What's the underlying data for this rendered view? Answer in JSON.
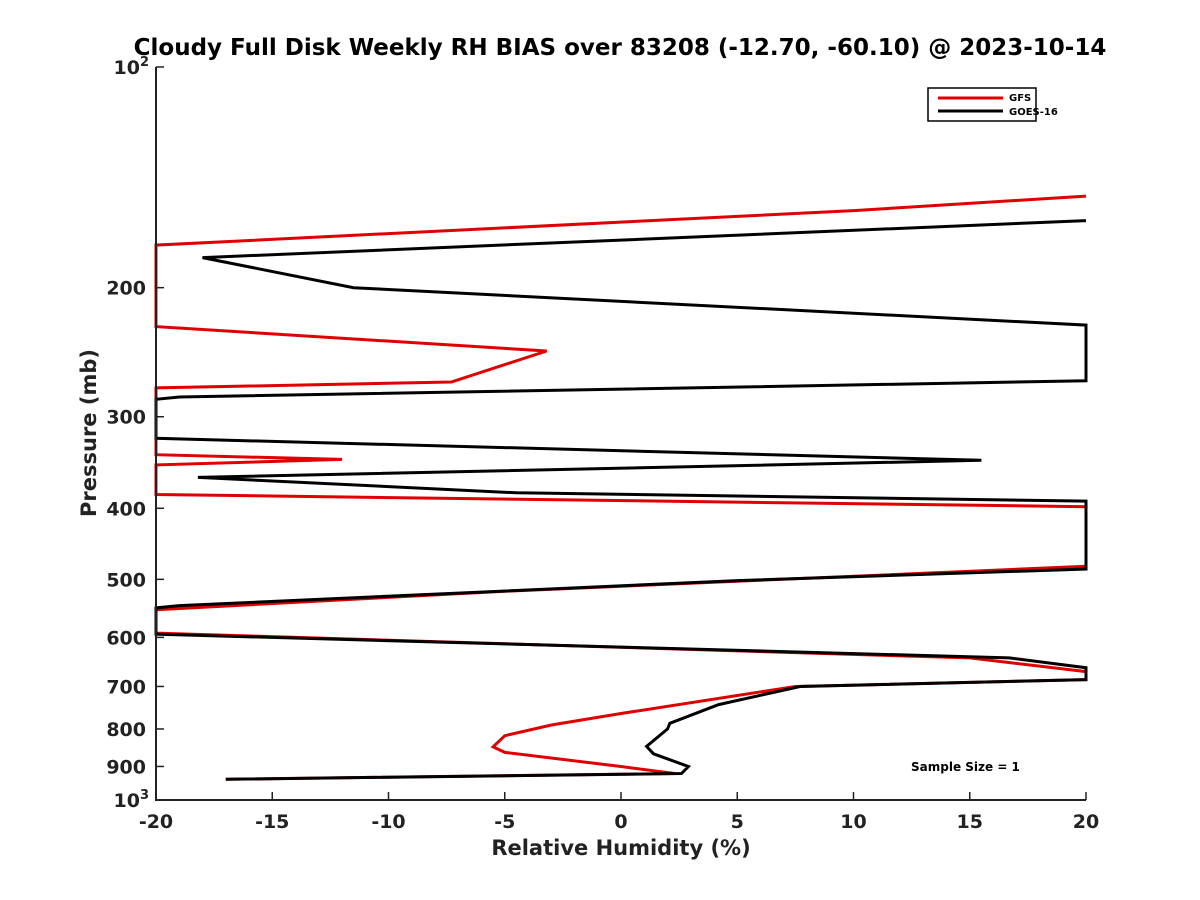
{
  "chart_data": {
    "type": "line",
    "title": "Cloudy Full Disk Weekly RH BIAS over 83208 (-12.70, -60.10) @ 2023-10-14",
    "xlabel": "Relative Humidity (%)",
    "ylabel": "Pressure (mb)",
    "xlim": [
      -20,
      20
    ],
    "ylim": [
      100,
      1000
    ],
    "yscale": "log",
    "x_ticks": [
      -20,
      -15,
      -10,
      -5,
      0,
      5,
      10,
      15,
      20
    ],
    "y_ticks": [
      {
        "value": 100,
        "base": "10",
        "exp": "2"
      },
      {
        "value": 200,
        "label": "200"
      },
      {
        "value": 300,
        "label": "300"
      },
      {
        "value": 400,
        "label": "400"
      },
      {
        "value": 500,
        "label": "500"
      },
      {
        "value": 600,
        "label": "600"
      },
      {
        "value": 700,
        "label": "700"
      },
      {
        "value": 800,
        "label": "800"
      },
      {
        "value": 900,
        "label": "900"
      },
      {
        "value": 1000,
        "base": "10",
        "exp": "3"
      }
    ],
    "legend_position": "top-right",
    "series": [
      {
        "name": "GFS",
        "color": "#e00000",
        "points": [
          [
            20,
            150
          ],
          [
            10,
            157
          ],
          [
            -20,
            175
          ],
          [
            -20,
            226
          ],
          [
            -3.2,
            244
          ],
          [
            -7.3,
            269
          ],
          [
            -20,
            274
          ],
          [
            -20,
            338
          ],
          [
            -12,
            343
          ],
          [
            -20,
            349
          ],
          [
            -20,
            383
          ],
          [
            20,
            398
          ],
          [
            20,
            480
          ],
          [
            -5,
            519
          ],
          [
            -20,
            550
          ],
          [
            -20,
            592
          ],
          [
            15,
            640
          ],
          [
            20,
            668
          ],
          [
            20,
            685
          ],
          [
            7.5,
            700
          ],
          [
            0,
            762
          ],
          [
            -3,
            790
          ],
          [
            -5,
            817
          ],
          [
            -5.5,
            846
          ],
          [
            -5,
            861
          ],
          [
            0,
            900
          ],
          [
            2.3,
            920
          ],
          [
            -17,
            937
          ]
        ]
      },
      {
        "name": "GOES-16",
        "color": "#000000",
        "points": [
          [
            20,
            162
          ],
          [
            -18,
            182
          ],
          [
            -11.5,
            200
          ],
          [
            20,
            225
          ],
          [
            20,
            268
          ],
          [
            -19,
            282
          ],
          [
            -20,
            284
          ],
          [
            -20,
            321
          ],
          [
            15.5,
            344
          ],
          [
            -18.2,
            363
          ],
          [
            -4.5,
            381
          ],
          [
            20,
            391
          ],
          [
            20,
            484
          ],
          [
            5,
            502
          ],
          [
            -19,
            543
          ],
          [
            -20,
            547
          ],
          [
            -20,
            594
          ],
          [
            16.7,
            640
          ],
          [
            20,
            660
          ],
          [
            20,
            685
          ],
          [
            7.7,
            700
          ],
          [
            4.2,
            741
          ],
          [
            2.1,
            786
          ],
          [
            2,
            800
          ],
          [
            1.1,
            845
          ],
          [
            1.4,
            865
          ],
          [
            2.9,
            900
          ],
          [
            2.6,
            920
          ],
          [
            -17,
            937
          ]
        ]
      }
    ],
    "annotation": "Sample Size = 1"
  }
}
